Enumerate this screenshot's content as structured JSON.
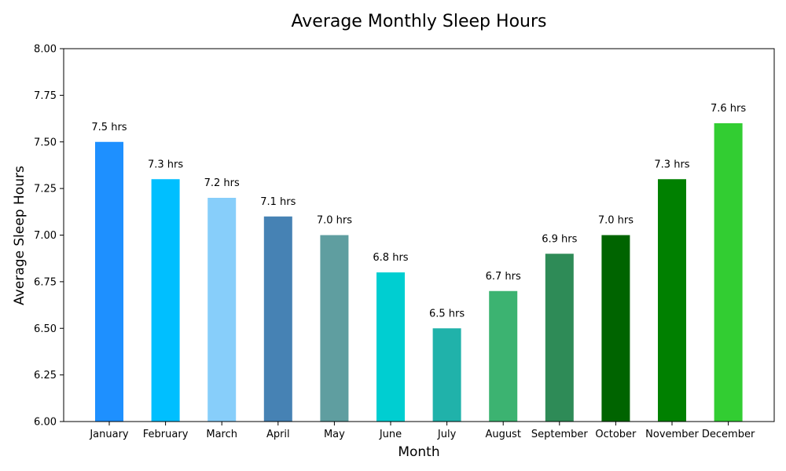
{
  "chart_data": {
    "type": "bar",
    "title": "Average Monthly Sleep Hours",
    "xlabel": "Month",
    "ylabel": "Average Sleep Hours",
    "categories": [
      "January",
      "February",
      "March",
      "April",
      "May",
      "June",
      "July",
      "August",
      "September",
      "October",
      "November",
      "December"
    ],
    "values": [
      7.5,
      7.3,
      7.2,
      7.1,
      7.0,
      6.8,
      6.5,
      6.7,
      6.9,
      7.0,
      7.3,
      7.6
    ],
    "data_labels": [
      "7.5 hrs",
      "7.3 hrs",
      "7.2 hrs",
      "7.1 hrs",
      "7.0 hrs",
      "6.8 hrs",
      "6.5 hrs",
      "6.7 hrs",
      "6.9 hrs",
      "7.0 hrs",
      "7.3 hrs",
      "7.6 hrs"
    ],
    "colors": [
      "#1e90ff",
      "#00bfff",
      "#87cefa",
      "#4682b4",
      "#5f9ea0",
      "#00ced1",
      "#20b2aa",
      "#3cb371",
      "#2e8b57",
      "#006400",
      "#008000",
      "#32cd32"
    ],
    "ylim": [
      6.0,
      8.0
    ],
    "yticks": [
      "6.00",
      "6.25",
      "6.50",
      "6.75",
      "7.00",
      "7.25",
      "7.50",
      "7.75",
      "8.00"
    ],
    "grid": false,
    "legend": "none"
  }
}
